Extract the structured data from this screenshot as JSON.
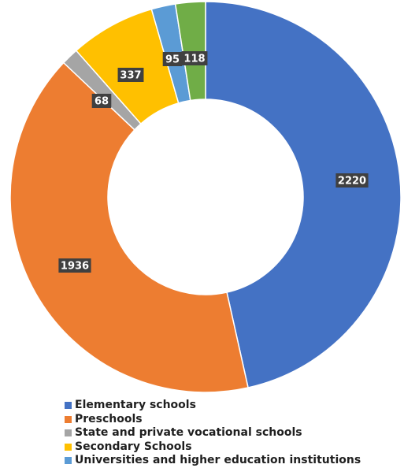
{
  "chart_data": {
    "type": "pie",
    "variant": "donut",
    "categories": [
      "Elementary schools",
      "Preschools",
      "State and private vocational schools",
      "Secondary Schools",
      "Universities and higher education institutions",
      ""
    ],
    "values": [
      2220,
      1936,
      68,
      337,
      95,
      118
    ],
    "data_labels": [
      "2220",
      "1936",
      "68",
      "337",
      "95",
      "118"
    ],
    "colors": [
      "#4472c4",
      "#ed7d31",
      "#a5a5a5",
      "#ffc000",
      "#5b9bd5",
      "#70ad47"
    ],
    "label_box_color": "#404040",
    "legend_position": "bottom",
    "start_angle_deg": 0,
    "direction": "clockwise"
  },
  "legend": {
    "items": [
      {
        "label": "Elementary schools",
        "color": "#4472c4"
      },
      {
        "label": "Preschools",
        "color": "#ed7d31"
      },
      {
        "label": "State and private vocational schools",
        "color": "#a5a5a5"
      },
      {
        "label": "Secondary Schools",
        "color": "#ffc000"
      },
      {
        "label": "Universities and higher education institutions",
        "color": "#5b9bd5"
      }
    ]
  }
}
